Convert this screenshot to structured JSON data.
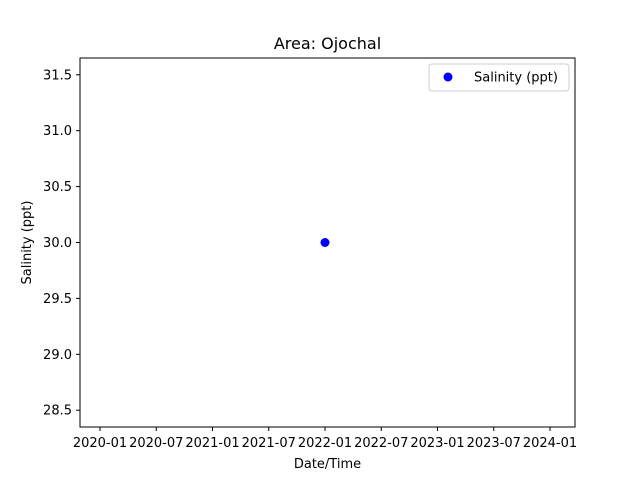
{
  "chart_data": {
    "type": "scatter",
    "title": "Area: Ojochal",
    "xlabel": "Date/Time",
    "ylabel": "Salinity (ppt)",
    "x_tick_labels": [
      "2020-01",
      "2020-07",
      "2021-01",
      "2021-07",
      "2022-01",
      "2022-07",
      "2023-01",
      "2023-07",
      "2024-01"
    ],
    "y_ticks": [
      28.5,
      29.0,
      29.5,
      30.0,
      30.5,
      31.0,
      31.5
    ],
    "y_tick_labels": [
      "28.5",
      "29.0",
      "29.5",
      "30.0",
      "30.5",
      "31.0",
      "31.5"
    ],
    "ylim": [
      28.35,
      31.65
    ],
    "series": [
      {
        "name": "Salinity (ppt)",
        "color": "#0000ff",
        "points": [
          {
            "x": "2022-01",
            "y": 30.0
          }
        ]
      }
    ],
    "legend": {
      "position": "top-right",
      "entries": [
        "Salinity (ppt)"
      ]
    },
    "grid": false
  }
}
